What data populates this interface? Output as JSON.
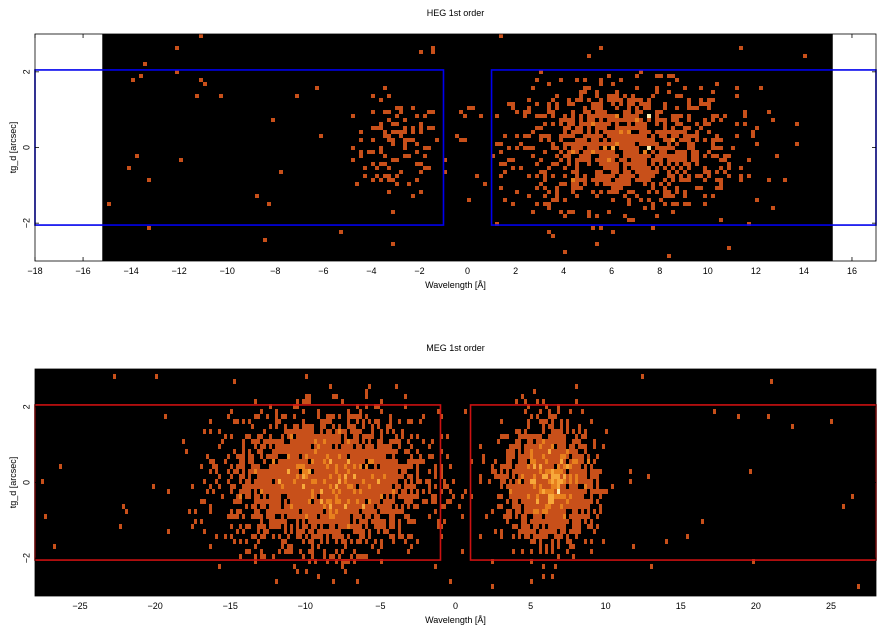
{
  "chart_data": [
    {
      "type": "heatmap",
      "title": "HEG 1st order",
      "xlabel": "Wavelength [Å]",
      "ylabel": "tg_d [arcsec]",
      "xlim": [
        -18,
        17
      ],
      "ylim": [
        -3,
        3
      ],
      "data_extent_x": [
        -15.2,
        15.2
      ],
      "x_ticks": [
        -18,
        -16,
        -14,
        -12,
        -10,
        -8,
        -6,
        -4,
        -2,
        0,
        2,
        4,
        6,
        8,
        10,
        12,
        14,
        16
      ],
      "y_ticks": [
        -2,
        0,
        2
      ],
      "region_color": "#0000ee",
      "regions": [
        {
          "x": [
            -18,
            -1
          ],
          "y": [
            -2.05,
            2.05
          ]
        },
        {
          "x": [
            1,
            17
          ],
          "y": [
            -2.05,
            2.05
          ]
        }
      ],
      "clusters": [
        {
          "center": [
            -2.9,
            0.0
          ],
          "sigma": [
            0.9,
            0.65
          ],
          "count": 110
        },
        {
          "center": [
            6.5,
            0.0
          ],
          "sigma": [
            2.3,
            0.8
          ],
          "count": 1050
        }
      ]
    },
    {
      "type": "heatmap",
      "title": "MEG 1st order",
      "xlabel": "Wavelength [Å]",
      "ylabel": "tg_d [arcsec]",
      "xlim": [
        -28,
        28
      ],
      "ylim": [
        -3,
        3
      ],
      "data_extent_x": [
        -28,
        28
      ],
      "x_ticks": [
        -25,
        -20,
        -15,
        -10,
        -5,
        0,
        5,
        10,
        15,
        20,
        25
      ],
      "y_ticks": [
        -2,
        0,
        2
      ],
      "region_color": "#cc1111",
      "regions": [
        {
          "x": [
            -28,
            -1
          ],
          "y": [
            -2.05,
            2.05
          ]
        },
        {
          "x": [
            1,
            28
          ],
          "y": [
            -2.05,
            2.05
          ]
        }
      ],
      "clusters": [
        {
          "center": [
            -8.5,
            0.0
          ],
          "sigma": [
            3.2,
            0.85
          ],
          "count": 2600
        },
        {
          "center": [
            6.3,
            0.0
          ],
          "sigma": [
            1.5,
            0.75
          ],
          "count": 1500
        }
      ]
    }
  ]
}
